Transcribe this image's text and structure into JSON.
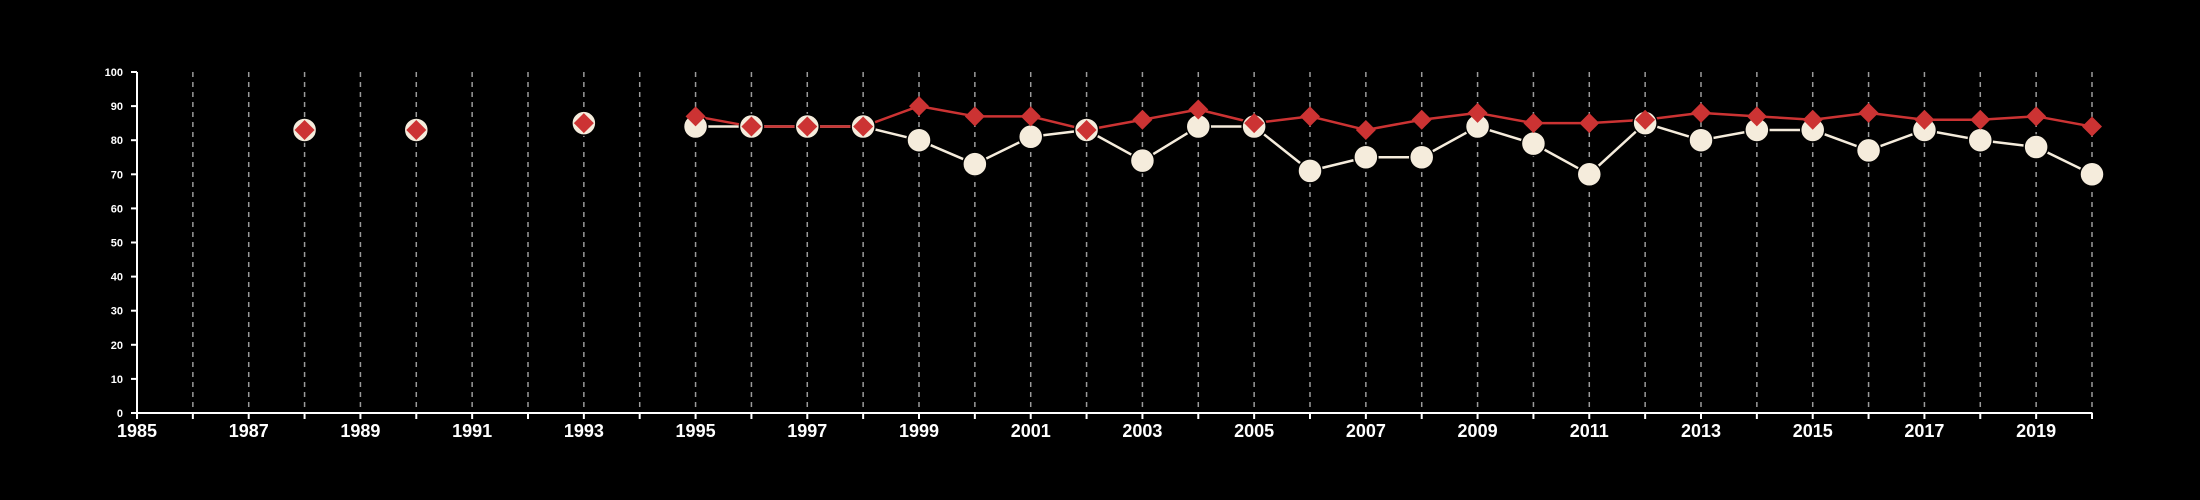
{
  "chart_data": {
    "type": "line",
    "title": "",
    "xlabel": "",
    "ylabel": "",
    "xlim": [
      1985,
      2020
    ],
    "ylim": [
      0,
      100
    ],
    "x_ticks": [
      1985,
      1987,
      1989,
      1991,
      1993,
      1995,
      1997,
      1999,
      2001,
      2003,
      2005,
      2007,
      2009,
      2011,
      2013,
      2015,
      2017,
      2019
    ],
    "y_ticks": [
      0,
      10,
      20,
      30,
      40,
      50,
      60,
      70,
      80,
      90,
      100
    ],
    "grid": "vertical dashed lines at each year",
    "series": [
      {
        "marker": "circle",
        "color": "#f5ecdc",
        "points": [
          [
            1988,
            83
          ],
          [
            1990,
            83
          ],
          [
            1993,
            85
          ],
          [
            1995,
            84
          ],
          [
            1996,
            84
          ],
          [
            1997,
            84
          ],
          [
            1998,
            84
          ],
          [
            1999,
            80
          ],
          [
            2000,
            73
          ],
          [
            2001,
            81
          ],
          [
            2002,
            83
          ],
          [
            2003,
            74
          ],
          [
            2004,
            84
          ],
          [
            2005,
            84
          ],
          [
            2006,
            71
          ],
          [
            2007,
            75
          ],
          [
            2008,
            75
          ],
          [
            2009,
            84
          ],
          [
            2010,
            79
          ],
          [
            2011,
            70
          ],
          [
            2012,
            85
          ],
          [
            2013,
            80
          ],
          [
            2014,
            83
          ],
          [
            2015,
            83
          ],
          [
            2016,
            77
          ],
          [
            2017,
            83
          ],
          [
            2018,
            80
          ],
          [
            2019,
            78
          ],
          [
            2020,
            70
          ]
        ]
      },
      {
        "marker": "diamond",
        "color": "#cc3333",
        "points": [
          [
            1988,
            83
          ],
          [
            1990,
            83
          ],
          [
            1993,
            85
          ],
          [
            1995,
            87
          ],
          [
            1996,
            84
          ],
          [
            1997,
            84
          ],
          [
            1998,
            84
          ],
          [
            1999,
            90
          ],
          [
            2000,
            87
          ],
          [
            2001,
            87
          ],
          [
            2002,
            83
          ],
          [
            2003,
            86
          ],
          [
            2004,
            89
          ],
          [
            2005,
            85
          ],
          [
            2006,
            87
          ],
          [
            2007,
            83
          ],
          [
            2008,
            86
          ],
          [
            2009,
            88
          ],
          [
            2010,
            85
          ],
          [
            2011,
            85
          ],
          [
            2012,
            86
          ],
          [
            2013,
            88
          ],
          [
            2014,
            87
          ],
          [
            2015,
            86
          ],
          [
            2016,
            88
          ],
          [
            2017,
            86
          ],
          [
            2018,
            86
          ],
          [
            2019,
            87
          ],
          [
            2020,
            84
          ]
        ]
      }
    ]
  }
}
